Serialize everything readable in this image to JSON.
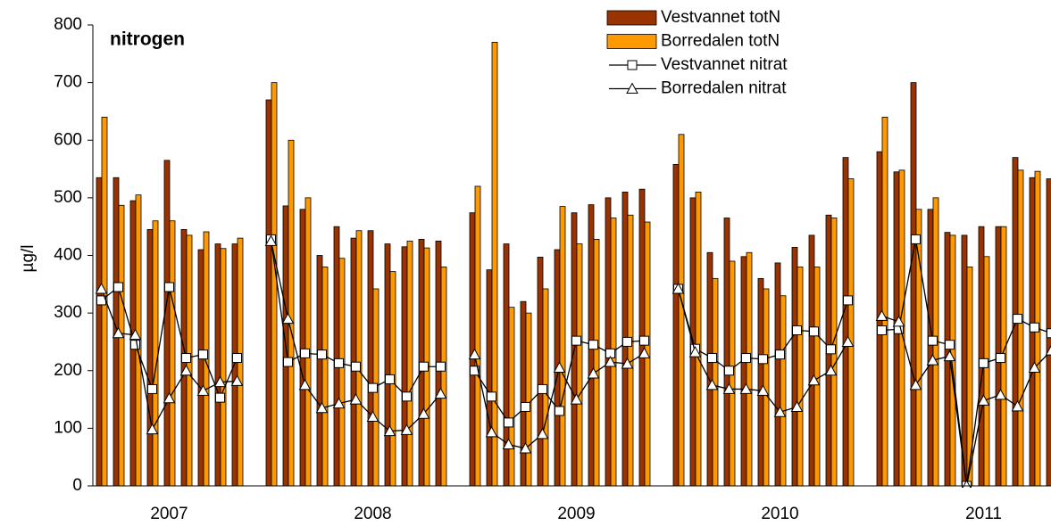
{
  "chart_data": {
    "type": "bar",
    "title": "nitrogen",
    "y_label": "µg/l",
    "categories": [
      null,
      null,
      null,
      null,
      null,
      null,
      null,
      null,
      null,
      null,
      null,
      null,
      null,
      null,
      null,
      null,
      null,
      null,
      null,
      null,
      null,
      null,
      null,
      null,
      null,
      null,
      null,
      null,
      null,
      null,
      null,
      null,
      null,
      null,
      null,
      null,
      null,
      null,
      null,
      null,
      null,
      null,
      null,
      null,
      null,
      null,
      null,
      null,
      null,
      null,
      null,
      null,
      null,
      null,
      null,
      null,
      null
    ],
    "year_labels": [
      "2007",
      "2008",
      "2009",
      "2010",
      "2011"
    ],
    "ylim": [
      0,
      800
    ],
    "yticks": [
      0,
      100,
      200,
      300,
      400,
      500,
      600,
      700,
      800
    ],
    "grid": false,
    "series": [
      {
        "name": "Vestvannet totN",
        "type": "bar",
        "color": "#993300",
        "values": [
          535,
          535,
          495,
          445,
          565,
          445,
          410,
          420,
          420,
          null,
          670,
          486,
          480,
          400,
          450,
          430,
          443,
          420,
          415,
          428,
          425,
          null,
          474,
          375,
          420,
          320,
          397,
          410,
          474,
          488,
          500,
          510,
          515,
          null,
          558,
          500,
          405,
          465,
          398,
          360,
          387,
          414,
          435,
          470,
          570,
          null,
          580,
          545,
          700,
          480,
          440,
          435,
          450,
          450,
          570,
          535,
          533
        ]
      },
      {
        "name": "Borredalen totN",
        "type": "bar",
        "color": "#FF9900",
        "values": [
          640,
          487,
          505,
          460,
          460,
          435,
          441,
          412,
          430,
          null,
          700,
          600,
          500,
          380,
          395,
          443,
          342,
          372,
          425,
          413,
          380,
          null,
          520,
          770,
          310,
          300,
          342,
          485,
          420,
          428,
          465,
          470,
          458,
          null,
          610,
          510,
          360,
          390,
          405,
          342,
          330,
          380,
          380,
          465,
          533,
          null,
          640,
          548,
          480,
          500,
          435,
          380,
          398,
          450,
          548,
          546,
          null
        ]
      },
      {
        "name": "Vestvannet nitrat",
        "type": "line",
        "marker": "square",
        "color": "#000000",
        "values": [
          322,
          345,
          245,
          168,
          345,
          222,
          228,
          153,
          222,
          null,
          428,
          215,
          230,
          228,
          213,
          207,
          170,
          185,
          155,
          207,
          207,
          null,
          200,
          155,
          110,
          137,
          168,
          130,
          252,
          245,
          230,
          250,
          252,
          null,
          342,
          238,
          222,
          200,
          222,
          220,
          228,
          270,
          268,
          237,
          322,
          null,
          270,
          272,
          428,
          252,
          245,
          0,
          213,
          222,
          290,
          275,
          265
        ]
      },
      {
        "name": "Borredalen nitrat",
        "type": "line",
        "marker": "triangle",
        "color": "#000000",
        "values": [
          342,
          265,
          262,
          98,
          152,
          200,
          165,
          180,
          182,
          null,
          425,
          290,
          175,
          135,
          143,
          150,
          120,
          95,
          97,
          125,
          160,
          null,
          228,
          93,
          72,
          65,
          90,
          205,
          150,
          195,
          215,
          212,
          230,
          null,
          342,
          232,
          175,
          168,
          168,
          165,
          128,
          137,
          183,
          200,
          250,
          null,
          295,
          285,
          175,
          218,
          225,
          0,
          148,
          158,
          138,
          205,
          235
        ]
      }
    ]
  }
}
